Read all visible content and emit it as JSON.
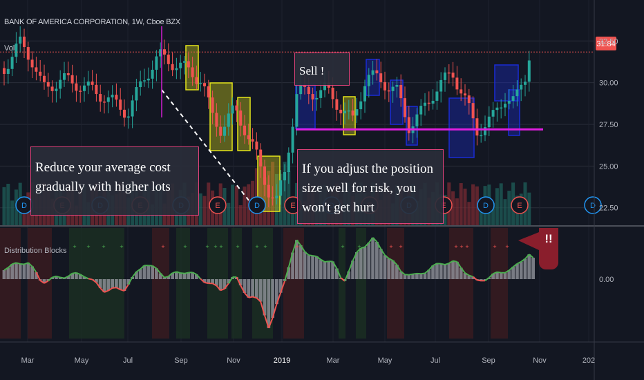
{
  "header": {
    "title": "BANK OF AMERICA CORPORATION, 1W, Cboe BZX",
    "volume_label": "Vol",
    "indicator_label": "Distribution Blocks"
  },
  "annotations": {
    "sell": "Sell !",
    "reduce": "Reduce your average cost gradually with higher lots",
    "adjust": "If you adjust the position size well for risk, you won't get hurt",
    "warning": "!!"
  },
  "colors": {
    "background": "#131722",
    "up": "#26a69a",
    "down": "#ef5350",
    "price_line": "#ef5350",
    "support_line": "#e01ee0",
    "indicator_line_up": "#4caf50",
    "indicator_line_down": "#ef5350",
    "yellow_box": "#e5e51a",
    "blue_box": "#1a2bd6"
  },
  "chart_data": {
    "type": "candlestick",
    "title": "BANK OF AMERICA CORPORATION, 1W, Cboe BZX",
    "price_axis": {
      "ticks": [
        "32.50",
        "30.00",
        "27.50",
        "25.00",
        "22.50"
      ],
      "range": [
        21.7,
        33.3
      ]
    },
    "last_price": "31.84",
    "support_level": 27.2,
    "indicator_axis": {
      "ticks": [
        "0.00"
      ]
    },
    "time_axis": {
      "ticks": [
        "Mar",
        "May",
        "Jul",
        "Sep",
        "Nov",
        "2019",
        "Mar",
        "May",
        "Jul",
        "Sep",
        "Nov",
        "202"
      ]
    },
    "earnings_markers": [
      "D",
      "E",
      "D",
      "E",
      "D",
      "E",
      "D",
      "E",
      "D",
      "E",
      "D",
      "E",
      "D",
      "E",
      "D",
      "E"
    ],
    "series": [
      {
        "name": "Vol"
      },
      {
        "name": "Distribution Blocks"
      }
    ]
  }
}
